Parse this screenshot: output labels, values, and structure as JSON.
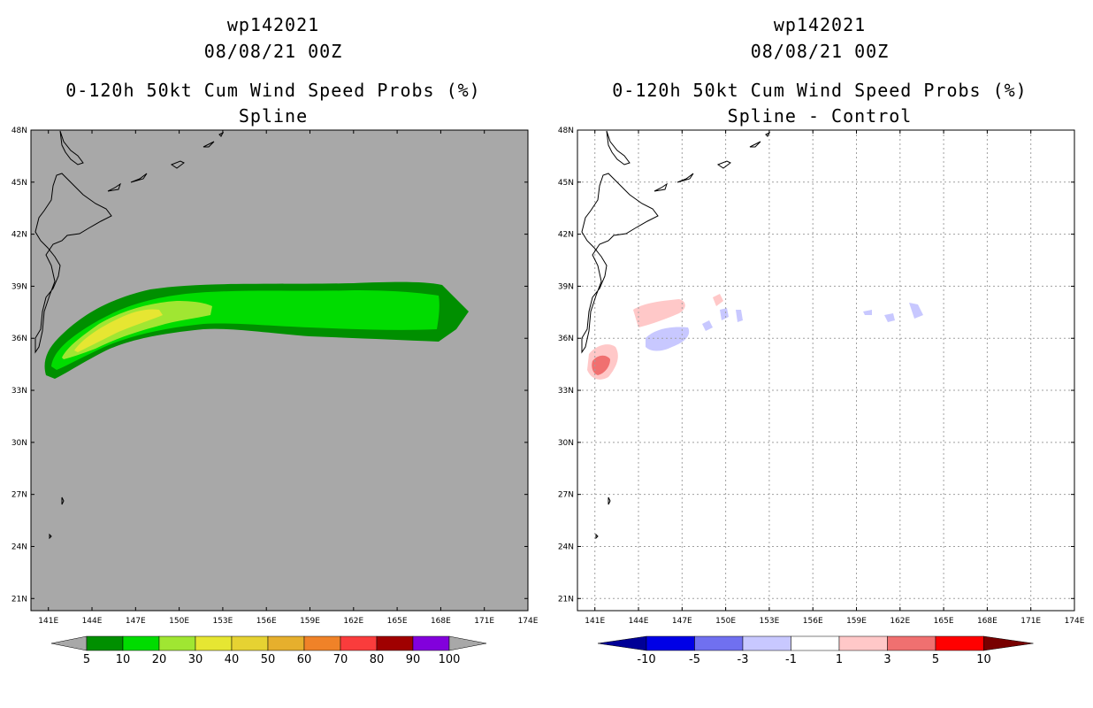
{
  "left": {
    "storm_id": "wp142021",
    "datetime": "08/08/21 00Z",
    "product": "0-120h 50kt Cum Wind Speed Probs (%)",
    "subtitle": "Spline",
    "background_color": "#a8a8a8",
    "colorbar": {
      "labels": [
        "5",
        "10",
        "20",
        "30",
        "40",
        "50",
        "60",
        "70",
        "80",
        "90",
        "100"
      ],
      "colors": [
        "#008f00",
        "#00dc00",
        "#a0e632",
        "#e6e632",
        "#e6d232",
        "#e6af2d",
        "#f08228",
        "#fa3c3c",
        "#a00000",
        "#8200dc"
      ],
      "end_color": "#a8a8a8"
    }
  },
  "right": {
    "storm_id": "wp142021",
    "datetime": "08/08/21 00Z",
    "product": "0-120h 50kt Cum Wind Speed Probs (%)",
    "subtitle": "Spline - Control",
    "background_color": "#ffffff",
    "colorbar": {
      "labels": [
        "-10",
        "-5",
        "-3",
        "-1",
        "1",
        "3",
        "5",
        "10"
      ],
      "colors": [
        "#0000e6",
        "#7070f0",
        "#c8c8ff",
        "#ffffff",
        "#ffc8c8",
        "#f07070",
        "#ff0000"
      ],
      "low_end_color": "#000096",
      "high_end_color": "#780000"
    }
  },
  "map": {
    "lon_labels": [
      "141E",
      "144E",
      "147E",
      "150E",
      "153E",
      "156E",
      "159E",
      "162E",
      "165E",
      "168E",
      "171E",
      "174E"
    ],
    "lat_labels": [
      "48N",
      "45N",
      "42N",
      "39N",
      "36N",
      "33N",
      "30N",
      "27N",
      "24N",
      "21N"
    ]
  }
}
